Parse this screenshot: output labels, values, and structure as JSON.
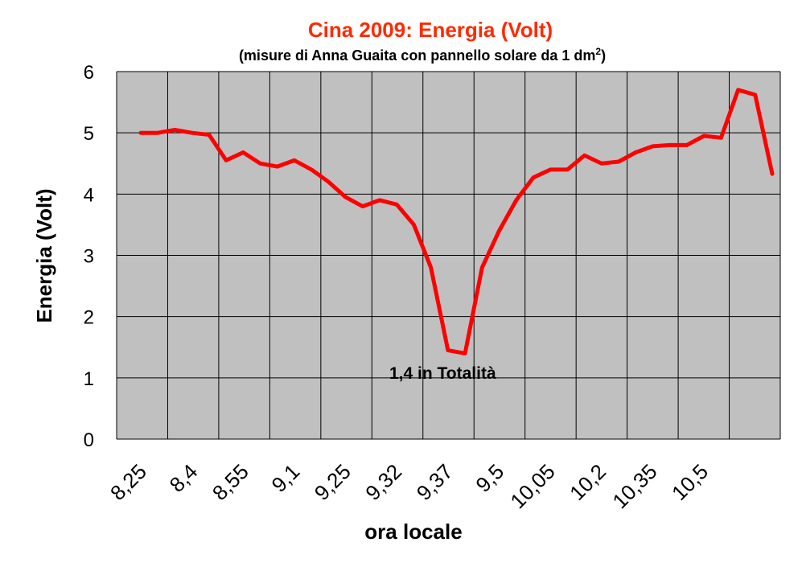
{
  "chart_data": {
    "type": "line",
    "title": "Cina 2009: Energia (Volt)",
    "subtitle_main": "(misure di Anna Guaita con pannello solare da 1 dm",
    "subtitle_sup": "2",
    "subtitle_end": ")",
    "xlabel": "ora locale",
    "ylabel": "Energia (Volt)",
    "ylim": [
      0,
      6
    ],
    "yticks": [
      "0",
      "1",
      "2",
      "3",
      "4",
      "5",
      "6"
    ],
    "grid": true,
    "x_tick_labels": [
      "8,25",
      "8,4",
      "8,55",
      "9,1",
      "9,25",
      "9,32",
      "9,37",
      "9,5",
      "10,05",
      "10,2",
      "10,35",
      "10,5"
    ],
    "annotation": "1,4 in Totalità",
    "line_color": "#ff0000",
    "plot_background": "#c0c0c0",
    "series": [
      {
        "values": [
          5.0,
          5.0,
          5.05,
          5.0,
          4.97,
          4.55,
          4.68,
          4.5,
          4.45,
          4.55,
          4.4,
          4.2,
          3.95,
          3.8,
          3.9,
          3.83,
          3.5,
          2.8,
          1.45,
          1.4,
          2.8,
          3.4,
          3.9,
          4.27,
          4.4,
          4.4,
          4.63,
          4.5,
          4.53,
          4.68,
          4.78,
          4.8,
          4.8,
          4.95,
          4.92,
          5.7,
          5.62,
          4.33
        ]
      }
    ]
  }
}
